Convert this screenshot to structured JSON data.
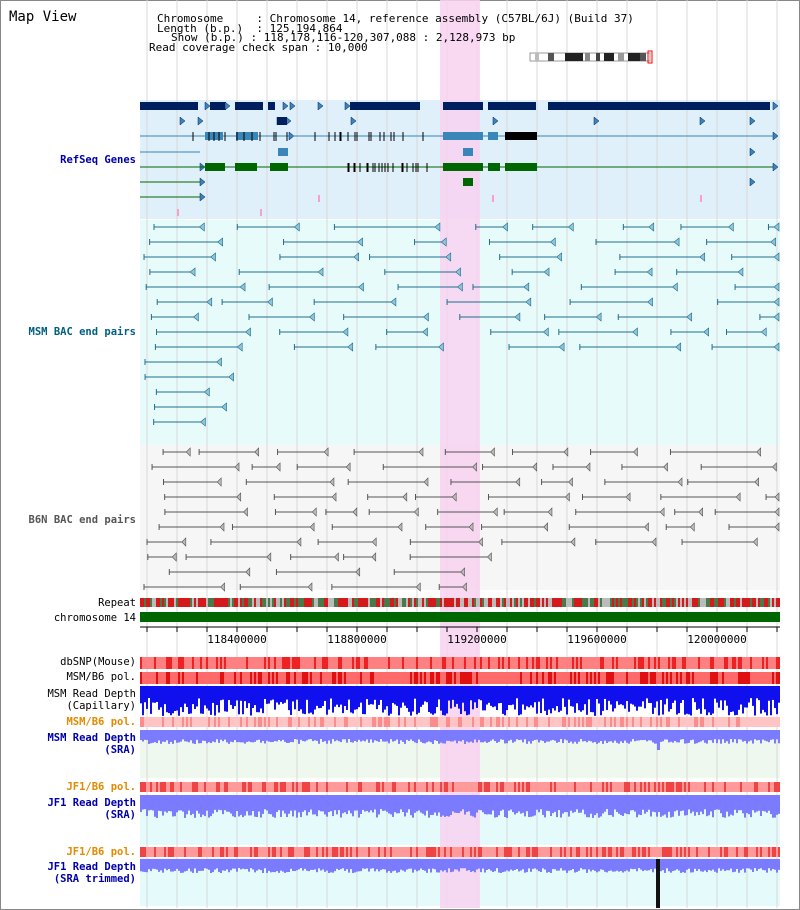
{
  "title": "Map View",
  "info": {
    "chromosome_key": "Chromosome",
    "chromosome_val": "Chromosome 14, reference assembly (C57BL/6J) (Build 37)",
    "length_key": "Length (b.p.)",
    "length_val": "125,194,864",
    "show_key": "Show (b.p.)",
    "show_val": "118,178,116-120,307,088 : 2,128,973 bp",
    "span_key": "Read coverage check span",
    "span_val": "10,000"
  },
  "tracks": {
    "refseq": "RefSeq Genes",
    "msm_bac": "MSM BAC end pairs",
    "b6n_bac": "B6N BAC end pairs",
    "repeat": "Repeat",
    "chromosome": "chromosome 14",
    "dbsnp": "dbSNP(Mouse)",
    "msm_b6_pol_1": "MSM/B6 pol.",
    "msm_depth_cap_1": "MSM Read Depth",
    "msm_depth_cap_2": "(Capillary)",
    "msm_b6_pol_2": "MSM/B6 pol.",
    "msm_depth_sra_1": "MSM Read Depth",
    "msm_depth_sra_2": "(SRA)",
    "jf1_pol_1": "JF1/B6 pol.",
    "jf1_depth_1": "JF1 Read Depth",
    "jf1_depth_2": "(SRA)",
    "jf1_pol_2": "JF1/B6 pol.",
    "jf1_trim_1": "JF1 Read Depth",
    "jf1_trim_2": "(SRA trimmed)"
  },
  "axis_ticks": [
    "118400000",
    "118800000",
    "119200000",
    "119600000",
    "120000000"
  ],
  "colors": {
    "refseq_bg": "#dff0fb",
    "gene_dark": "#001f5f",
    "gene_mid": "#3a86b8",
    "gene_green": "#006600",
    "bac_bg": "#e8fbfb",
    "bac_line": "#1f6f8f",
    "b6n_line": "#555555",
    "highlight": "#f8d2f0",
    "chromosome_bar": "#006600",
    "depth_blue": "#1010ee",
    "sra_blue": "#7b7bff",
    "pol_red": "#ee3333",
    "label_blue": "#0000aa",
    "label_teal": "#006080",
    "label_orange": "#e38a00"
  }
}
